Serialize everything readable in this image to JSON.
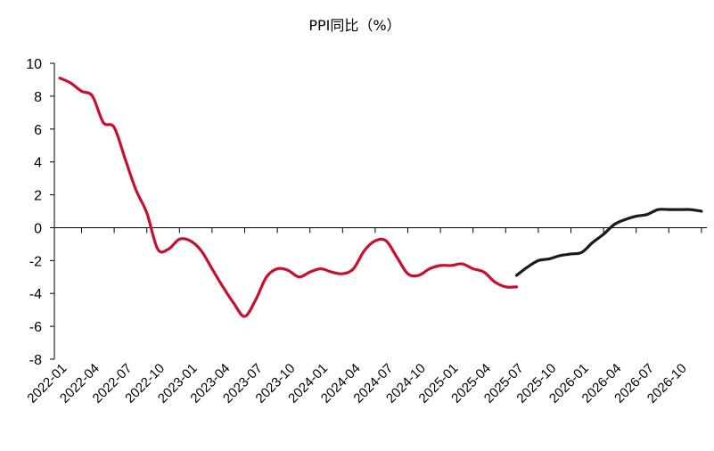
{
  "chart_data": {
    "type": "line",
    "title": "PPI同比（%）",
    "xlabel": "",
    "ylabel": "",
    "ylim": [
      -8,
      10
    ],
    "yticks": [
      "10",
      "8",
      "6",
      "4",
      "2",
      "0",
      "-2",
      "-4",
      "-6",
      "-8"
    ],
    "xtick_labels": [
      "2022-01",
      "2022-04",
      "2022-07",
      "2022-10",
      "2023-01",
      "2023-04",
      "2023-07",
      "2023-10",
      "2024-01",
      "2024-04",
      "2024-07",
      "2024-10",
      "2025-01",
      "2025-04",
      "2025-07",
      "2025-10",
      "2026-01",
      "2026-04",
      "2026-07",
      "2026-10"
    ],
    "x_range": [
      "2022-01",
      "2026-12"
    ],
    "grid": false,
    "legend": "none",
    "series": [
      {
        "color": "#c8102e",
        "x": [
          "2022-01",
          "2022-02",
          "2022-03",
          "2022-04",
          "2022-05",
          "2022-06",
          "2022-07",
          "2022-08",
          "2022-09",
          "2022-10",
          "2022-11",
          "2022-12",
          "2023-01",
          "2023-02",
          "2023-03",
          "2023-04",
          "2023-05",
          "2023-06",
          "2023-07",
          "2023-08",
          "2023-09",
          "2023-10",
          "2023-11",
          "2023-12",
          "2024-01",
          "2024-02",
          "2024-03",
          "2024-04",
          "2024-05",
          "2024-06",
          "2024-07",
          "2024-08",
          "2024-09",
          "2024-10",
          "2024-11",
          "2024-12",
          "2025-01",
          "2025-02",
          "2025-03",
          "2025-04",
          "2025-05",
          "2025-06",
          "2025-07"
        ],
        "values": [
          9.1,
          8.8,
          8.3,
          8.0,
          6.4,
          6.1,
          4.2,
          2.3,
          0.9,
          -1.3,
          -1.3,
          -0.7,
          -0.8,
          -1.4,
          -2.5,
          -3.6,
          -4.6,
          -5.4,
          -4.4,
          -3.0,
          -2.5,
          -2.6,
          -3.0,
          -2.7,
          -2.5,
          -2.7,
          -2.8,
          -2.5,
          -1.4,
          -0.8,
          -0.8,
          -1.8,
          -2.8,
          -2.9,
          -2.5,
          -2.3,
          -2.3,
          -2.2,
          -2.5,
          -2.7,
          -3.3,
          -3.6,
          -3.6
        ]
      },
      {
        "color": "#1a1a1a",
        "x": [
          "2025-07",
          "2025-08",
          "2025-09",
          "2025-10",
          "2025-11",
          "2025-12",
          "2026-01",
          "2026-02",
          "2026-03",
          "2026-04",
          "2026-05",
          "2026-06",
          "2026-07",
          "2026-08",
          "2026-09",
          "2026-10",
          "2026-11",
          "2026-12"
        ],
        "values": [
          -2.9,
          -2.4,
          -2.0,
          -1.9,
          -1.7,
          -1.6,
          -1.5,
          -0.9,
          -0.4,
          0.2,
          0.5,
          0.7,
          0.8,
          1.1,
          1.1,
          1.1,
          1.1,
          1.0
        ]
      }
    ]
  }
}
